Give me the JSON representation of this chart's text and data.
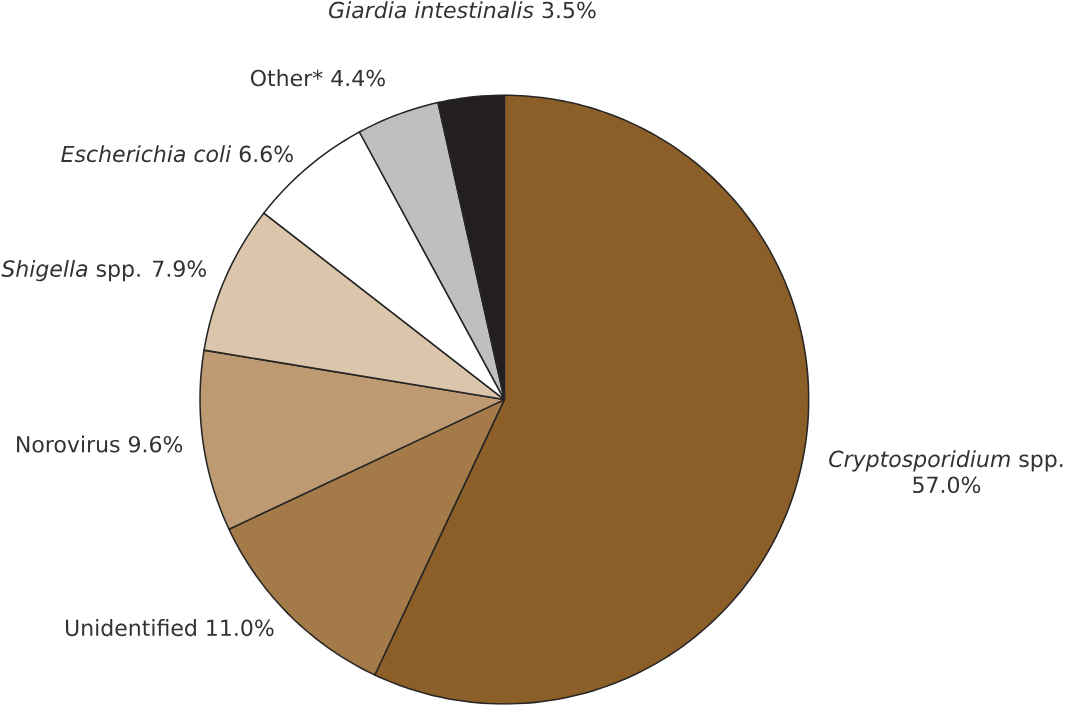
{
  "chart_data": {
    "type": "pie",
    "categories": [
      "*Cryptosporidium* spp.",
      "Unidentified",
      "Norovirus",
      "*Shigella* spp.",
      "*Escherichia coli*",
      "Other*",
      "*Giardia intestinalis*"
    ],
    "values": [
      57.0,
      11.0,
      9.6,
      7.9,
      6.6,
      4.4,
      3.5
    ],
    "value_labels": [
      "57.0%",
      "11.0%",
      "9.6%",
      "7.9%",
      "6.6%",
      "4.4%",
      "3.5%"
    ],
    "colors": [
      "#8c5e28",
      "#a37a48",
      "#bd9a72",
      "#dcc6ab",
      "#ffffff",
      "#bfbfbf",
      "#231f20"
    ]
  }
}
